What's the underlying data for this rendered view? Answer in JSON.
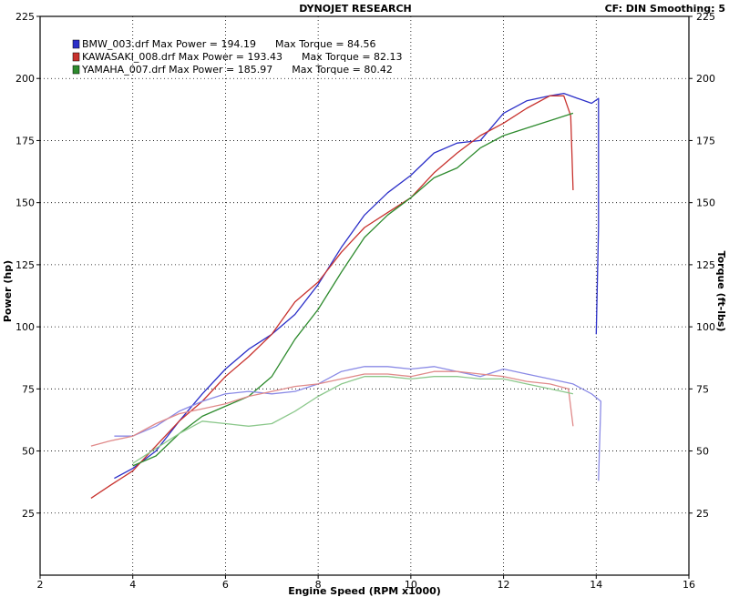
{
  "header": {
    "title": "DYNOJET RESEARCH",
    "settings": "CF: DIN  Smoothing: 5"
  },
  "chart_data": {
    "type": "line",
    "xlabel": "Engine Speed (RPM x1000)",
    "ylabel_left": "Power (hp)",
    "ylabel_right": "Torque (ft-lbs)",
    "xlim": [
      2,
      16
    ],
    "ylim": [
      0,
      225
    ],
    "xticks": [
      "2",
      "4",
      "6",
      "8",
      "10",
      "12",
      "14",
      "16"
    ],
    "yticks": [
      "25",
      "50",
      "75",
      "100",
      "125",
      "150",
      "175",
      "200",
      "225"
    ],
    "grid": true,
    "legend_position": "top-left",
    "legend": [
      "BMW_003.drf Max Power = 194.19      Max Torque = 84.56",
      "KAWASAKI_008.drf Max Power = 193.43      Max Torque = 82.13",
      "YAMAHA_007.drf Max Power = 185.97      Max Torque = 80.42"
    ],
    "series": [
      {
        "name": "BMW_003.drf",
        "kind": "power",
        "color": "#2b2fc8",
        "x": [
          3.6,
          4.0,
          4.5,
          5.0,
          5.5,
          6.0,
          6.5,
          7.0,
          7.5,
          8.0,
          8.5,
          9.0,
          9.5,
          10.0,
          10.5,
          11.0,
          11.5,
          12.0,
          12.5,
          13.0,
          13.3,
          13.6,
          13.9,
          14.05,
          14.05,
          14.0
        ],
        "y": [
          39,
          43,
          50,
          62,
          73,
          83,
          91,
          97,
          105,
          117,
          132,
          145,
          154,
          161,
          170,
          174,
          175,
          186,
          191,
          193,
          194,
          192,
          190,
          192,
          140,
          97
        ]
      },
      {
        "name": "KAWASAKI_008.drf",
        "kind": "power",
        "color": "#c8322e",
        "x": [
          3.1,
          3.5,
          4.0,
          4.5,
          5.0,
          5.5,
          6.0,
          6.5,
          7.0,
          7.5,
          8.0,
          8.5,
          9.0,
          9.5,
          10.0,
          10.5,
          11.0,
          11.5,
          12.0,
          12.5,
          13.0,
          13.3,
          13.45,
          13.5
        ],
        "y": [
          31,
          36,
          42,
          52,
          62,
          70,
          80,
          88,
          97,
          110,
          118,
          130,
          140,
          146,
          152,
          162,
          170,
          177,
          182,
          188,
          193,
          193,
          185,
          155
        ]
      },
      {
        "name": "YAMAHA_007.drf",
        "kind": "power",
        "color": "#2e8b2e",
        "x": [
          4.0,
          4.5,
          5.0,
          5.5,
          6.0,
          6.5,
          7.0,
          7.5,
          8.0,
          8.5,
          9.0,
          9.5,
          10.0,
          10.5,
          11.0,
          11.5,
          12.0,
          12.5,
          13.0,
          13.5
        ],
        "y": [
          44,
          48,
          57,
          64,
          68,
          72,
          80,
          95,
          107,
          122,
          136,
          145,
          152,
          160,
          164,
          172,
          177,
          180,
          183,
          186
        ]
      },
      {
        "name": "BMW_003.drf",
        "kind": "torque",
        "color": "#8a8ae6",
        "x": [
          3.6,
          4.0,
          4.5,
          5.0,
          5.5,
          6.0,
          6.5,
          7.0,
          7.5,
          8.0,
          8.5,
          9.0,
          9.5,
          10.0,
          10.5,
          11.0,
          11.5,
          12.0,
          12.5,
          13.0,
          13.5,
          13.9,
          14.1,
          14.05
        ],
        "y": [
          56,
          56,
          60,
          66,
          70,
          73,
          74,
          73,
          74,
          77,
          82,
          84,
          84,
          83,
          84,
          82,
          80,
          83,
          81,
          79,
          77,
          73,
          70,
          38
        ]
      },
      {
        "name": "KAWASAKI_008.drf",
        "kind": "torque",
        "color": "#e08a8a",
        "x": [
          3.1,
          3.5,
          4.0,
          4.5,
          5.0,
          5.5,
          6.0,
          6.5,
          7.0,
          7.5,
          8.0,
          8.5,
          9.0,
          9.5,
          10.0,
          10.5,
          11.0,
          11.5,
          12.0,
          12.5,
          13.0,
          13.4,
          13.5
        ],
        "y": [
          52,
          54,
          56,
          61,
          65,
          67,
          69,
          72,
          74,
          76,
          77,
          79,
          81,
          81,
          80,
          82,
          82,
          81,
          80,
          78,
          77,
          75,
          60
        ]
      },
      {
        "name": "YAMAHA_007.drf",
        "kind": "torque",
        "color": "#8cc88c",
        "x": [
          4.0,
          4.5,
          5.0,
          5.5,
          6.0,
          6.5,
          7.0,
          7.5,
          8.0,
          8.5,
          9.0,
          9.5,
          10.0,
          10.5,
          11.0,
          11.5,
          12.0,
          12.5,
          13.0,
          13.5
        ],
        "y": [
          45,
          51,
          57,
          62,
          61,
          60,
          61,
          66,
          72,
          77,
          80,
          80,
          79,
          80,
          80,
          79,
          79,
          77,
          75,
          73
        ]
      }
    ]
  }
}
